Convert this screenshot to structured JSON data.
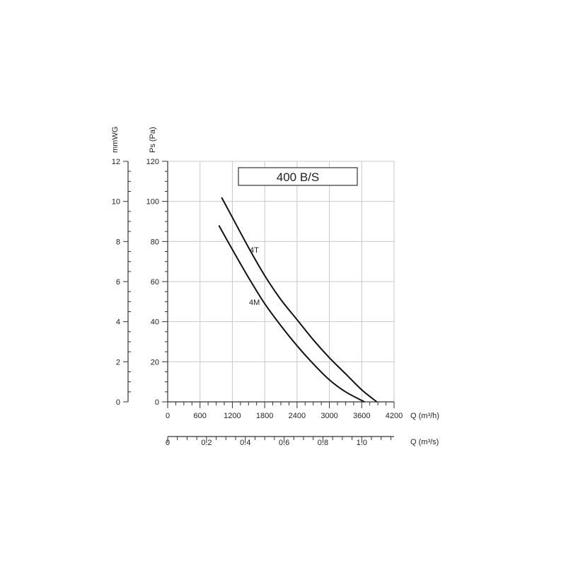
{
  "chart_data": {
    "type": "line",
    "title": "400 B/S",
    "ylabel": "Ps (Pa)",
    "ylabel_secondary": "mmWG",
    "xlabel": "Q (m³/h)",
    "xlabel_secondary": "Q (m³/s)",
    "xlim": [
      0,
      4200
    ],
    "ylim": [
      0,
      120
    ],
    "xticks": [
      "0",
      "600",
      "1200",
      "1800",
      "2400",
      "3000",
      "3600",
      "4200"
    ],
    "xticks_secondary": [
      "0",
      "0.2",
      "0.4",
      "0.6",
      "0.8",
      "1.0"
    ],
    "yticks": [
      "0",
      "20",
      "40",
      "60",
      "80",
      "100",
      "120"
    ],
    "yticks_secondary": [
      "0",
      "2",
      "4",
      "6",
      "8",
      "10",
      "12"
    ],
    "grid": true,
    "series": [
      {
        "name": "4T",
        "x": [
          1000,
          1200,
          1500,
          1800,
          2100,
          2400,
          2700,
          3000,
          3300,
          3600,
          3880
        ],
        "y": [
          102,
          92,
          77,
          63,
          51,
          41,
          31,
          22,
          14,
          6,
          0
        ]
      },
      {
        "name": "4M",
        "x": [
          950,
          1200,
          1500,
          1800,
          2100,
          2400,
          2700,
          3000,
          3300,
          3650
        ],
        "y": [
          88,
          76,
          62,
          49,
          38,
          28,
          19,
          11,
          5,
          0
        ]
      }
    ]
  }
}
